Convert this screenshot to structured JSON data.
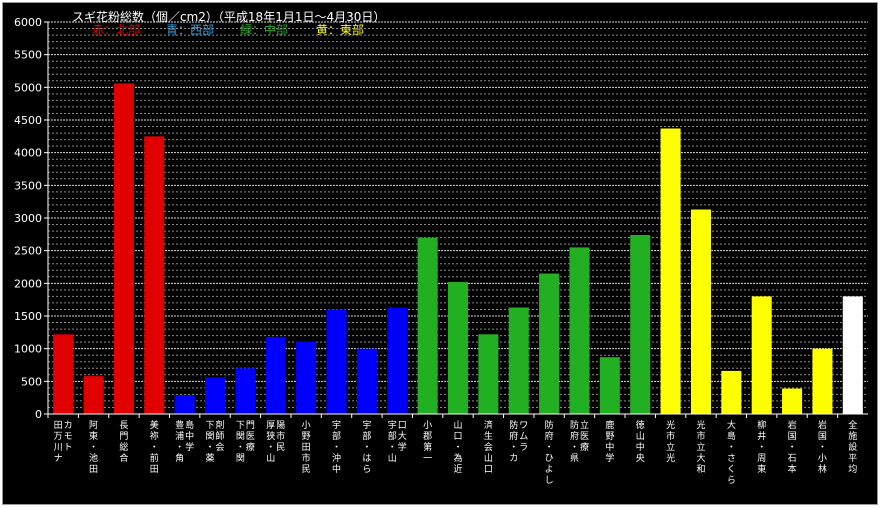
{
  "chart_data": {
    "type": "bar",
    "title": "スギ花粉総数（個／cm2）（平成18年1月1日～4月30日）",
    "legend": [
      {
        "label": "赤：北部",
        "color": "#e00000"
      },
      {
        "label": "青：西部",
        "color": "#2aa0e8"
      },
      {
        "label": "緑：中部",
        "color": "#22b022"
      },
      {
        "label": "黄：東部",
        "color": "#ffff00"
      }
    ],
    "categories": [
      "田万川ナカモト",
      "阿東・池田",
      "長門総合",
      "美祢・前田",
      "豊浦・角島中学",
      "下関・薬剤師会",
      "下関・関門医療",
      "厚狭・山陽市民",
      "小野田市民",
      "宇部・沖中",
      "宇部・はら",
      "宇部・山口大学",
      "小郡第一",
      "山口・為近",
      "済生会山口",
      "防府・カワムラ",
      "防府・ひよし",
      "防府・県立医療",
      "鹿野中学",
      "徳山中央",
      "光市立光",
      "光市立大和",
      "大島・さくら",
      "柳井・周東",
      "岩国・石本",
      "岩国・小林",
      "全施設平均"
    ],
    "values": [
      1220,
      580,
      5060,
      4250,
      290,
      560,
      700,
      1180,
      1110,
      1600,
      1000,
      1630,
      2700,
      2020,
      1220,
      1630,
      2150,
      2550,
      870,
      2740,
      4370,
      3130,
      660,
      1800,
      390,
      1000,
      1800
    ],
    "colors": [
      "#e00000",
      "#e00000",
      "#e00000",
      "#e00000",
      "#0000ff",
      "#0000ff",
      "#0000ff",
      "#0000ff",
      "#0000ff",
      "#0000ff",
      "#0000ff",
      "#0000ff",
      "#22b022",
      "#22b022",
      "#22b022",
      "#22b022",
      "#22b022",
      "#22b022",
      "#22b022",
      "#22b022",
      "#ffff00",
      "#ffff00",
      "#ffff00",
      "#ffff00",
      "#ffff00",
      "#ffff00",
      "#ffffff"
    ],
    "ylim": [
      0,
      6000
    ],
    "yticks": [
      "0",
      "500",
      "1000",
      "1500",
      "2000",
      "2500",
      "3000",
      "3500",
      "4000",
      "4500",
      "5000",
      "5500",
      "6000"
    ],
    "minor_gridlines": true
  }
}
